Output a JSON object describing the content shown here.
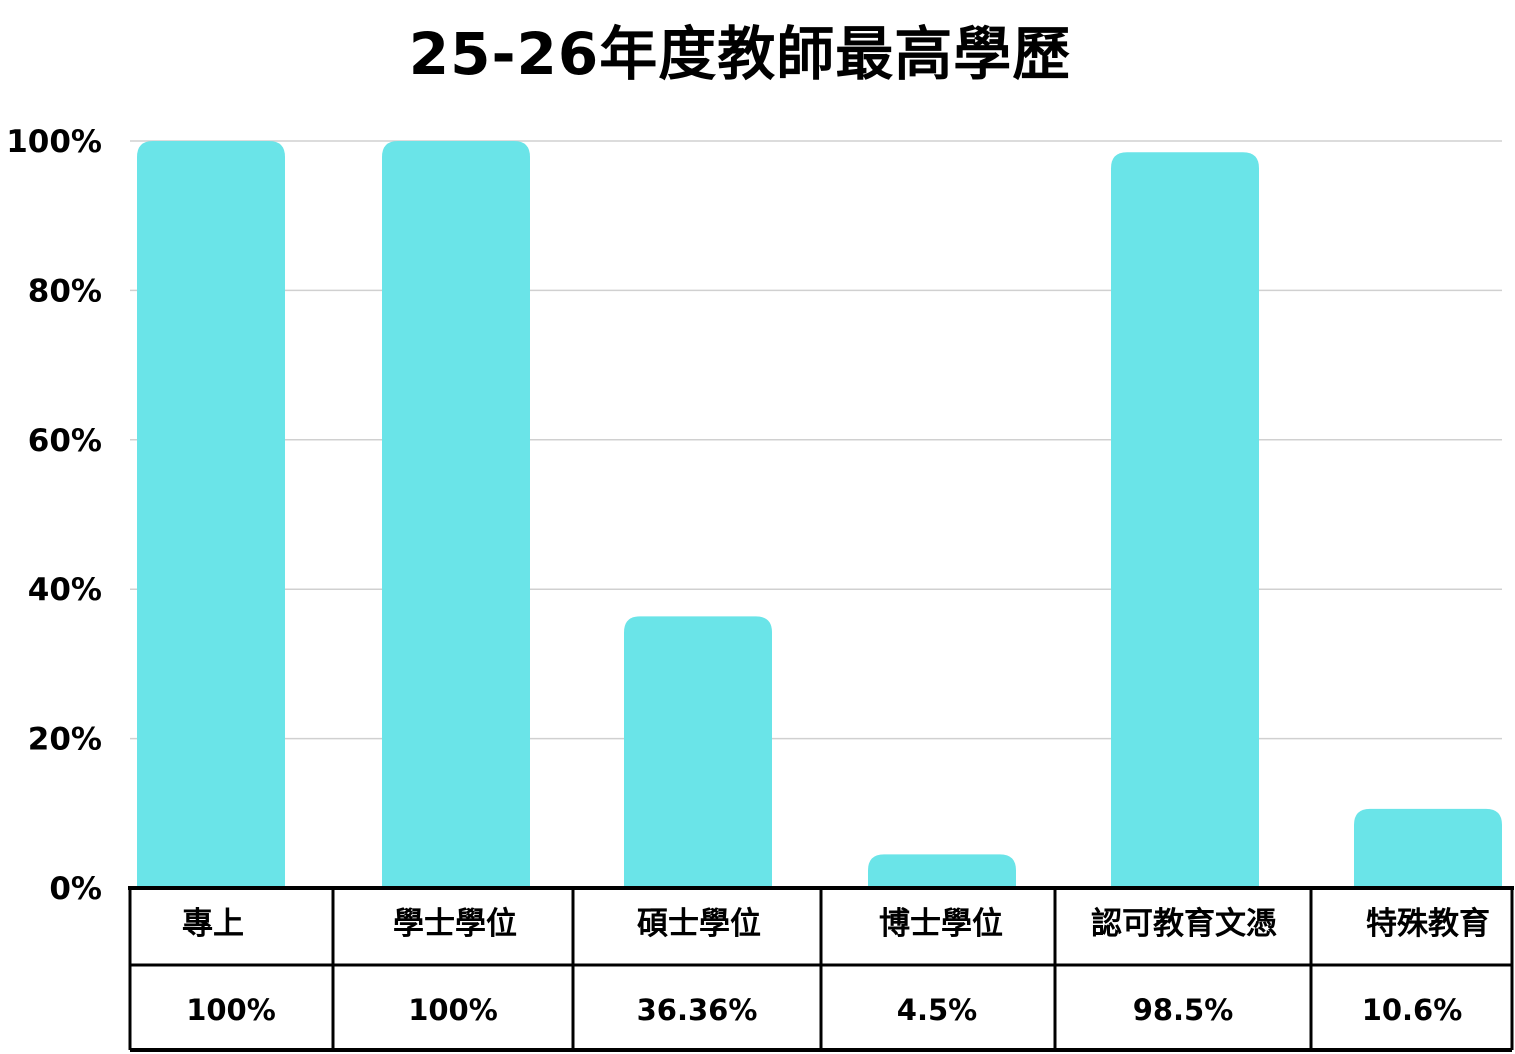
{
  "chart_data": {
    "type": "bar",
    "title": "25-26年度教師最高學歷",
    "xlabel": "",
    "ylabel": "",
    "categories": [
      "專上",
      "學士學位",
      "碩士學位",
      "博士學位",
      "認可教育文憑",
      "特殊教育"
    ],
    "values": [
      100,
      100,
      36.36,
      4.5,
      98.5,
      10.6
    ],
    "value_labels": [
      "100%",
      "100%",
      "36.36%",
      "4.5%",
      "98.5%",
      "10.6%"
    ],
    "ylim": [
      0,
      100
    ],
    "yticks": [
      0,
      20,
      40,
      60,
      80,
      100
    ],
    "ytick_labels": [
      "0%",
      "20%",
      "40%",
      "60%",
      "80%",
      "100%"
    ],
    "grid": true,
    "legend": "none",
    "data_table": true,
    "colors": {
      "bar": "#6ae4e8",
      "grid": "#d0d0d0",
      "table_border": "#000000"
    }
  }
}
